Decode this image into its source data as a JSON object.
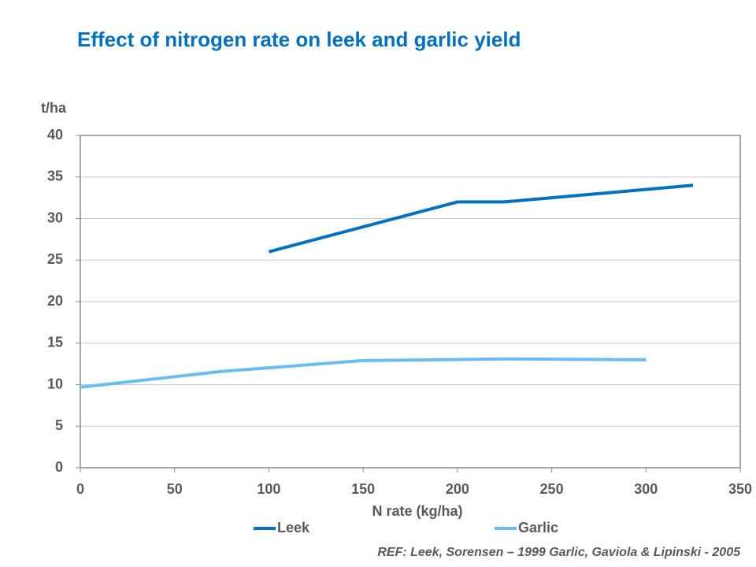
{
  "chart_data": {
    "type": "line",
    "title": "Effect of nitrogen rate on leek and garlic yield",
    "ylabel": "t/ha",
    "xlabel": "N rate (kg/ha)",
    "reference": "REF: Leek, Sorensen – 1999 Garlic, Gaviola & Lipinski - 2005",
    "series": [
      {
        "name": "Leek",
        "color": "#0070c0",
        "x": [
          100,
          150,
          200,
          225,
          325
        ],
        "values": [
          26,
          29,
          32,
          32,
          34
        ]
      },
      {
        "name": "Garlic",
        "color": "#6cbcf4",
        "x": [
          0,
          75,
          150,
          225,
          300
        ],
        "values": [
          9.7,
          11.6,
          12.9,
          13.1,
          13.0
        ]
      }
    ],
    "xlim": [
      0,
      350
    ],
    "xticks": [
      0,
      50,
      100,
      150,
      200,
      250,
      300,
      350
    ],
    "ylim": [
      0,
      40
    ],
    "yticks": [
      0,
      5,
      10,
      15,
      20,
      25,
      30,
      35,
      40
    ],
    "grid": true,
    "legend": "bottom"
  }
}
